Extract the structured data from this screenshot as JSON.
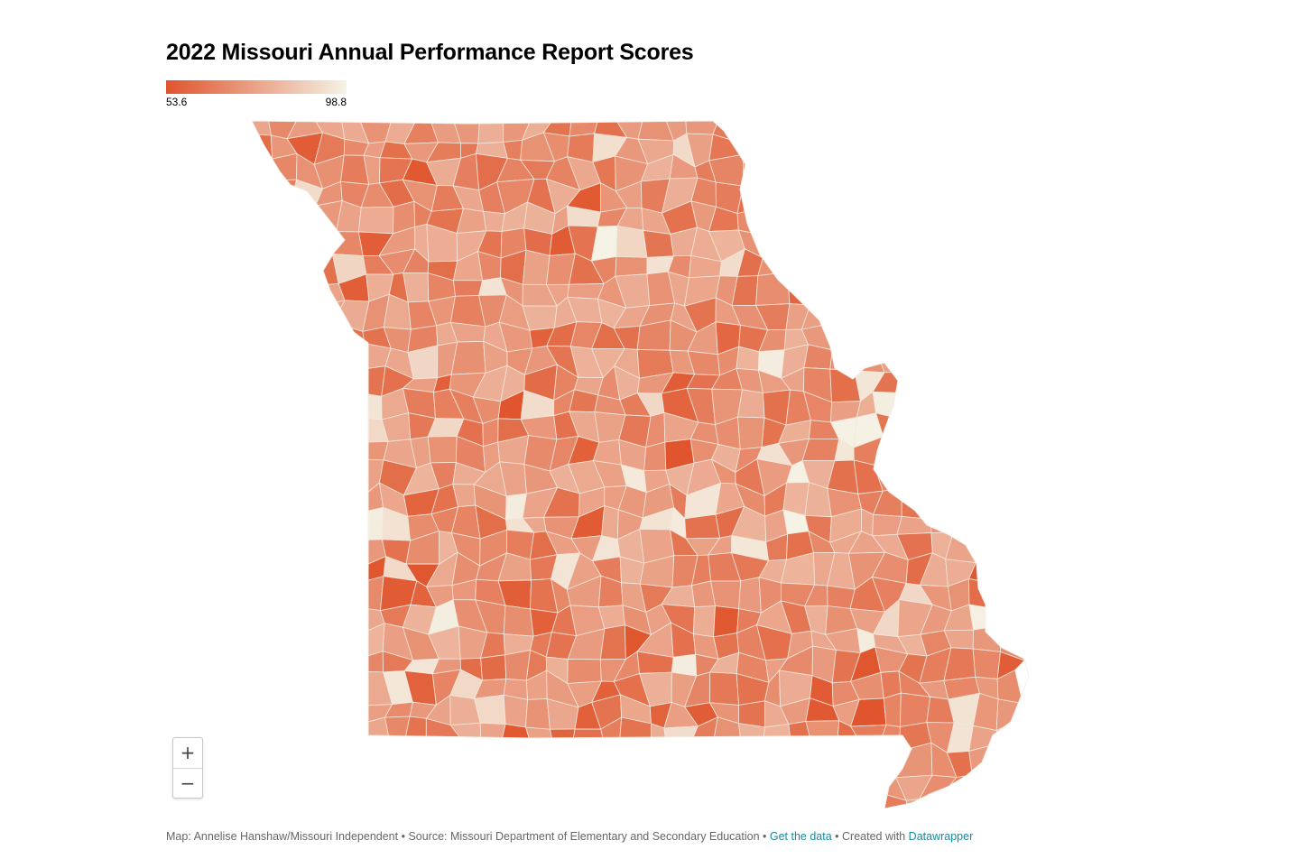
{
  "title": "2022 Missouri Annual Performance Report Scores",
  "legend": {
    "min": "53.6",
    "max": "98.8",
    "color_low": "#e0542c",
    "color_high": "#f5f3e6"
  },
  "zoom": {
    "in_label": "+",
    "out_label": "−"
  },
  "footer": {
    "map_credit": "Map: Annelise Hanshaw/Missouri Independent",
    "separator": " • ",
    "source": "Source: Missouri Department of Elementary and Secondary Education",
    "get_data_label": "Get the data",
    "created_with": "Created with",
    "tool_link": "Datawrapper"
  }
}
